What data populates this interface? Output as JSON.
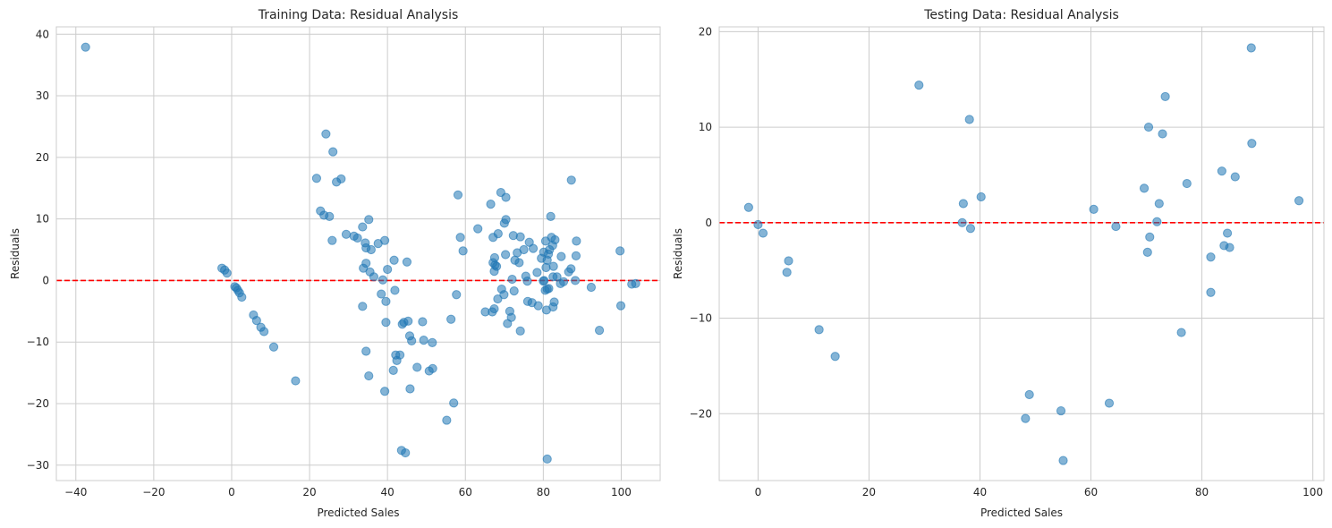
{
  "figure": {
    "colors": {
      "point": "#1f77b4",
      "zero_line": "#ff0000",
      "grid": "#cccccc",
      "frame": "#cccccc",
      "text": "#262626"
    }
  },
  "chart_data": [
    {
      "type": "scatter",
      "title": "Training Data: Residual Analysis",
      "xlabel": "Predicted Sales",
      "ylabel": "Residuals",
      "xlim": [
        -45,
        110
      ],
      "ylim": [
        -32.5,
        41.2
      ],
      "xticks": [
        -40,
        -20,
        0,
        20,
        40,
        60,
        80,
        100
      ],
      "yticks": [
        -30,
        -20,
        -10,
        0,
        10,
        20,
        30,
        40
      ],
      "xtick_labels": [
        "−40",
        "−20",
        "0",
        "20",
        "40",
        "60",
        "80",
        "100"
      ],
      "ytick_labels": [
        "−30",
        "−20",
        "−10",
        "0",
        "10",
        "20",
        "30",
        "40"
      ],
      "reference_line": 0,
      "grid": true,
      "points": [
        [
          -37.5,
          37.9
        ],
        [
          -2.5,
          2.0
        ],
        [
          -1.8,
          1.7
        ],
        [
          -1.2,
          1.2
        ],
        [
          0.8,
          -1.0
        ],
        [
          1.2,
          -1.2
        ],
        [
          1.6,
          -1.6
        ],
        [
          2.0,
          -2.0
        ],
        [
          2.6,
          -2.7
        ],
        [
          5.6,
          -5.6
        ],
        [
          6.4,
          -6.5
        ],
        [
          7.5,
          -7.6
        ],
        [
          8.3,
          -8.3
        ],
        [
          10.8,
          -10.8
        ],
        [
          16.4,
          -16.3
        ],
        [
          21.8,
          16.6
        ],
        [
          22.8,
          11.3
        ],
        [
          23.7,
          10.6
        ],
        [
          24.2,
          23.8
        ],
        [
          25.1,
          10.4
        ],
        [
          25.8,
          6.5
        ],
        [
          26.0,
          20.9
        ],
        [
          26.9,
          16.0
        ],
        [
          28.1,
          16.5
        ],
        [
          29.4,
          7.5
        ],
        [
          31.4,
          7.2
        ],
        [
          32.3,
          6.9
        ],
        [
          33.6,
          8.7
        ],
        [
          33.6,
          -4.2
        ],
        [
          33.8,
          2.0
        ],
        [
          34.3,
          6.1
        ],
        [
          34.5,
          -11.5
        ],
        [
          34.5,
          2.8
        ],
        [
          34.5,
          5.3
        ],
        [
          35.2,
          9.9
        ],
        [
          35.2,
          -15.5
        ],
        [
          35.5,
          1.4
        ],
        [
          35.8,
          5.0
        ],
        [
          36.5,
          0.6
        ],
        [
          37.6,
          6.0
        ],
        [
          38.4,
          -2.2
        ],
        [
          38.8,
          0.1
        ],
        [
          39.3,
          6.5
        ],
        [
          39.3,
          -18.0
        ],
        [
          39.6,
          -6.8
        ],
        [
          39.6,
          -3.4
        ],
        [
          40.0,
          1.8
        ],
        [
          41.5,
          -14.6
        ],
        [
          41.7,
          3.3
        ],
        [
          41.9,
          -1.6
        ],
        [
          42.1,
          -12.1
        ],
        [
          42.4,
          -13.0
        ],
        [
          43.2,
          -12.1
        ],
        [
          43.6,
          -27.6
        ],
        [
          43.8,
          -7.1
        ],
        [
          44.2,
          -6.8
        ],
        [
          44.6,
          -28.0
        ],
        [
          45.0,
          3.0
        ],
        [
          45.3,
          -6.6
        ],
        [
          45.7,
          -9.0
        ],
        [
          45.8,
          -17.6
        ],
        [
          46.2,
          -9.8
        ],
        [
          47.6,
          -14.1
        ],
        [
          49.0,
          -6.7
        ],
        [
          49.3,
          -9.7
        ],
        [
          50.7,
          -14.7
        ],
        [
          51.5,
          -10.1
        ],
        [
          51.6,
          -14.3
        ],
        [
          55.2,
          -22.7
        ],
        [
          56.3,
          -6.3
        ],
        [
          57.0,
          -19.9
        ],
        [
          57.7,
          -2.3
        ],
        [
          58.1,
          13.9
        ],
        [
          58.7,
          7.0
        ],
        [
          59.4,
          4.8
        ],
        [
          63.2,
          8.4
        ],
        [
          65.1,
          -5.1
        ],
        [
          66.5,
          12.4
        ],
        [
          66.9,
          -5.1
        ],
        [
          67.1,
          2.9
        ],
        [
          67.1,
          7.0
        ],
        [
          67.4,
          -4.6
        ],
        [
          67.4,
          1.5
        ],
        [
          67.5,
          3.7
        ],
        [
          67.6,
          2.5
        ],
        [
          68.0,
          2.3
        ],
        [
          68.3,
          -3.0
        ],
        [
          68.4,
          7.6
        ],
        [
          69.1,
          14.3
        ],
        [
          69.3,
          -1.4
        ],
        [
          69.9,
          -2.3
        ],
        [
          70.0,
          9.3
        ],
        [
          70.3,
          4.2
        ],
        [
          70.4,
          9.9
        ],
        [
          70.4,
          13.5
        ],
        [
          70.8,
          -7.0
        ],
        [
          71.4,
          -5.0
        ],
        [
          71.8,
          -6.0
        ],
        [
          72.0,
          0.2
        ],
        [
          72.3,
          7.3
        ],
        [
          72.5,
          -1.7
        ],
        [
          72.7,
          3.3
        ],
        [
          73.3,
          4.5
        ],
        [
          73.8,
          2.9
        ],
        [
          74.1,
          -8.2
        ],
        [
          74.1,
          7.1
        ],
        [
          75.0,
          5.0
        ],
        [
          75.5,
          0.7
        ],
        [
          75.9,
          -0.1
        ],
        [
          76.0,
          -3.4
        ],
        [
          76.4,
          6.2
        ],
        [
          77.1,
          -3.6
        ],
        [
          77.4,
          5.2
        ],
        [
          78.4,
          1.3
        ],
        [
          78.7,
          -4.1
        ],
        [
          79.5,
          3.6
        ],
        [
          80.0,
          -0.1
        ],
        [
          80.1,
          4.6
        ],
        [
          80.2,
          0.0
        ],
        [
          80.5,
          -1.6
        ],
        [
          80.6,
          6.4
        ],
        [
          80.7,
          2.1
        ],
        [
          80.8,
          -4.8
        ],
        [
          81.0,
          3.3
        ],
        [
          81.0,
          -29.0
        ],
        [
          81.0,
          -1.4
        ],
        [
          81.3,
          4.3
        ],
        [
          81.4,
          -1.3
        ],
        [
          81.6,
          5.0
        ],
        [
          81.9,
          10.4
        ],
        [
          82.1,
          7.0
        ],
        [
          82.4,
          5.7
        ],
        [
          82.5,
          0.6
        ],
        [
          82.5,
          -4.3
        ],
        [
          82.6,
          2.3
        ],
        [
          82.8,
          -3.5
        ],
        [
          83.0,
          6.6
        ],
        [
          83.5,
          0.6
        ],
        [
          84.4,
          -0.5
        ],
        [
          84.6,
          3.9
        ],
        [
          85.2,
          -0.2
        ],
        [
          86.5,
          1.4
        ],
        [
          87.1,
          1.9
        ],
        [
          87.2,
          16.3
        ],
        [
          88.2,
          0.0
        ],
        [
          88.4,
          4.0
        ],
        [
          88.5,
          6.4
        ],
        [
          92.3,
          -1.1
        ],
        [
          94.4,
          -8.1
        ],
        [
          99.7,
          4.8
        ],
        [
          99.9,
          -4.1
        ],
        [
          102.7,
          -0.6
        ],
        [
          103.7,
          -0.5
        ]
      ]
    },
    {
      "type": "scatter",
      "title": "Testing Data: Residual Analysis",
      "xlabel": "Predicted Sales",
      "ylabel": "Residuals",
      "xlim": [
        -7,
        102
      ],
      "ylim": [
        -27,
        20.5
      ],
      "xticks": [
        0,
        20,
        40,
        60,
        80,
        100
      ],
      "yticks": [
        -20,
        -10,
        0,
        10,
        20
      ],
      "xtick_labels": [
        "0",
        "20",
        "40",
        "60",
        "80",
        "100"
      ],
      "ytick_labels": [
        "−20",
        "−10",
        "0",
        "10",
        "20"
      ],
      "reference_line": 0,
      "grid": true,
      "points": [
        [
          -1.7,
          1.6
        ],
        [
          0.0,
          -0.2
        ],
        [
          0.9,
          -1.1
        ],
        [
          5.2,
          -5.2
        ],
        [
          5.5,
          -4.0
        ],
        [
          11.0,
          -11.2
        ],
        [
          13.9,
          -14.0
        ],
        [
          29.0,
          14.4
        ],
        [
          36.8,
          0.0
        ],
        [
          37.0,
          2.0
        ],
        [
          38.1,
          10.8
        ],
        [
          38.3,
          -0.6
        ],
        [
          40.2,
          2.7
        ],
        [
          48.2,
          -20.5
        ],
        [
          48.9,
          -18.0
        ],
        [
          54.6,
          -19.7
        ],
        [
          55.0,
          -24.9
        ],
        [
          60.5,
          1.4
        ],
        [
          63.3,
          -18.9
        ],
        [
          64.5,
          -0.4
        ],
        [
          69.6,
          3.6
        ],
        [
          70.2,
          -3.1
        ],
        [
          70.4,
          10.0
        ],
        [
          70.6,
          -1.5
        ],
        [
          71.9,
          0.1
        ],
        [
          72.3,
          2.0
        ],
        [
          72.9,
          9.3
        ],
        [
          73.4,
          13.2
        ],
        [
          76.3,
          -11.5
        ],
        [
          77.3,
          4.1
        ],
        [
          81.6,
          -3.6
        ],
        [
          81.6,
          -7.3
        ],
        [
          83.6,
          5.4
        ],
        [
          84.0,
          -2.4
        ],
        [
          84.6,
          -1.1
        ],
        [
          85.0,
          -2.6
        ],
        [
          86.0,
          4.8
        ],
        [
          88.9,
          18.3
        ],
        [
          89.0,
          8.3
        ],
        [
          97.5,
          2.3
        ]
      ]
    }
  ]
}
